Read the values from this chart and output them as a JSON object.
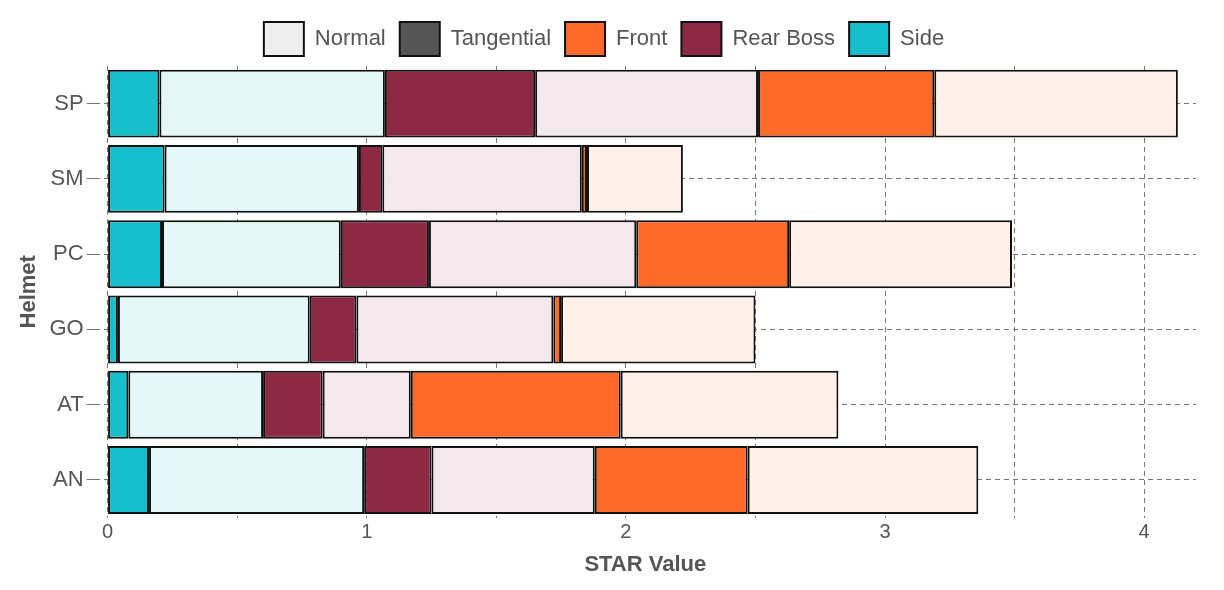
{
  "chart_data": {
    "type": "bar",
    "orientation": "horizontal",
    "stacked": true,
    "xlabel": "STAR Value",
    "ylabel": "Helmet",
    "categories": [
      "SP",
      "SM",
      "PC",
      "GO",
      "AT",
      "AN"
    ],
    "series": [
      {
        "name": "Normal",
        "color": "#eeeeee",
        "values": [
          null,
          null,
          null,
          null,
          null,
          null
        ]
      },
      {
        "name": "Tangential",
        "color": "#555555",
        "values": [
          null,
          null,
          null,
          null,
          null,
          null
        ]
      },
      {
        "name": "Side",
        "color": "#17becb",
        "values": [
          0.2,
          0.22,
          0.21,
          0.04,
          0.08,
          0.16
        ]
      },
      {
        "color": "#e6f7f8",
        "values": [
          0.87,
          0.75,
          0.69,
          0.74,
          0.52,
          0.83
        ]
      },
      {
        "name": "Rear Boss",
        "color": "#8c2a45",
        "values": [
          0.58,
          0.09,
          0.34,
          0.18,
          0.23,
          0.26
        ]
      },
      {
        "color": "#f3e8ec",
        "values": [
          0.86,
          0.77,
          0.8,
          0.76,
          0.34,
          0.63
        ]
      },
      {
        "name": "Front",
        "color": "#fd6a2a",
        "values": [
          0.68,
          0.02,
          0.59,
          0.03,
          0.81,
          0.59
        ]
      },
      {
        "color": "#fff0e9",
        "values": [
          0.94,
          0.37,
          0.86,
          0.75,
          0.84,
          0.89
        ]
      }
    ],
    "xlim": [
      -0.05,
      4.2
    ],
    "xticks": [
      0,
      {
        "value": 0.5,
        "label": null
      },
      1,
      {
        "value": 1.5,
        "label": null
      },
      2,
      {
        "value": 2.5,
        "label": null
      },
      3,
      {
        "value": 3.5,
        "label": null
      },
      4
    ],
    "grid": true,
    "legend": "top"
  }
}
